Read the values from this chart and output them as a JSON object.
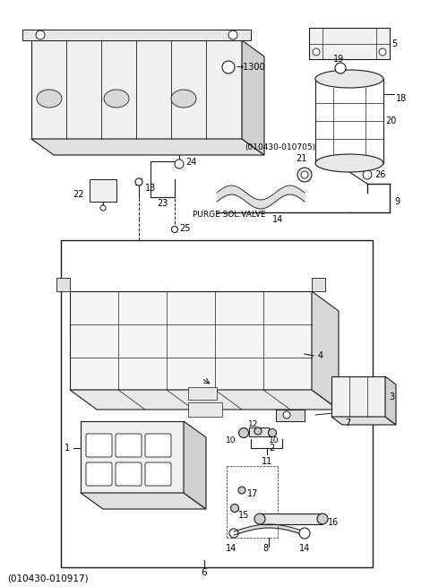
{
  "bg_color": "#ffffff",
  "line_color": "#1a1a1a",
  "fig_width": 4.8,
  "fig_height": 6.55,
  "title": "(010430-010917)"
}
